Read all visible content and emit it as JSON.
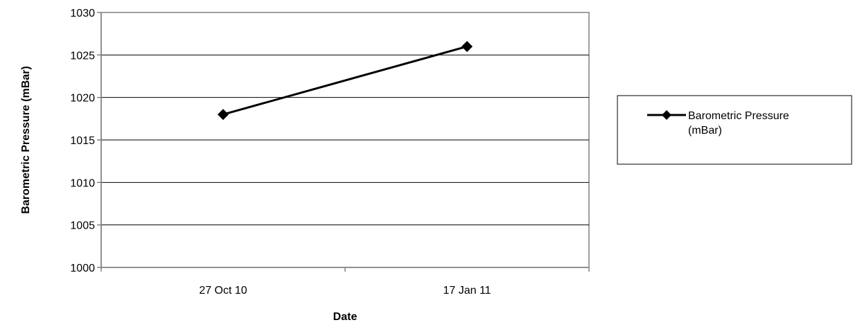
{
  "chart_data": {
    "type": "line",
    "categories": [
      "27 Oct 10",
      "17 Jan 11"
    ],
    "series": [
      {
        "name": "Barometric Pressure (mBar)",
        "values": [
          1018,
          1026
        ],
        "color": "#000000",
        "marker": "diamond"
      }
    ],
    "xlabel": "Date",
    "ylabel": "Barometric Pressure (mBar)",
    "ylim": [
      1000,
      1030
    ],
    "yticks": [
      1000,
      1005,
      1010,
      1015,
      1020,
      1025,
      1030
    ],
    "grid": true,
    "legend_placement": "right"
  }
}
